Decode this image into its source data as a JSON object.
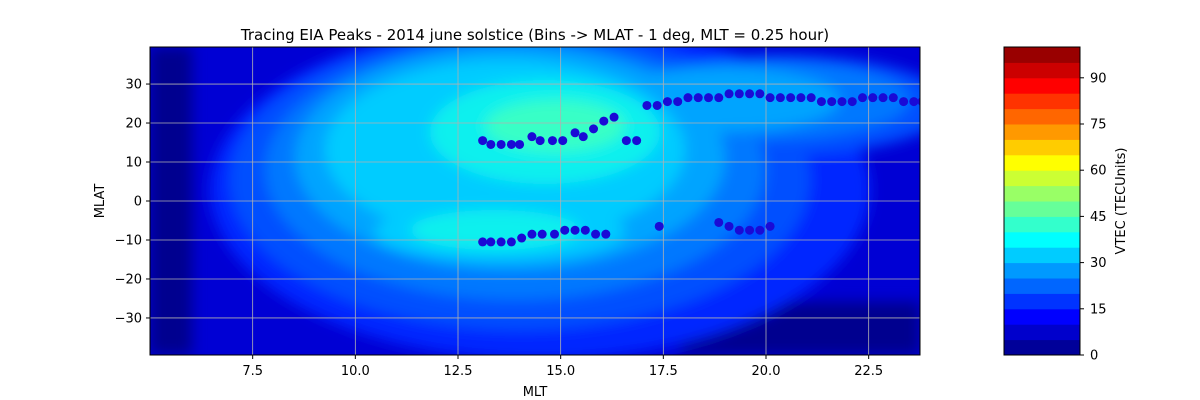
{
  "chart_data": {
    "type": "contour",
    "title": "Tracing EIA Peaks - 2014 june solstice (Bins -> MLAT - 1 deg, MLT = 0.25 hour)",
    "xlabel": "MLT",
    "ylabel": "MLAT",
    "xlim": [
      5.0,
      23.75
    ],
    "ylim": [
      -39.5,
      39.5
    ],
    "xticks": [
      7.5,
      10.0,
      12.5,
      15.0,
      17.5,
      20.0,
      22.5
    ],
    "xtick_labels": [
      "7.5",
      "10.0",
      "12.5",
      "15.0",
      "17.5",
      "20.0",
      "22.5"
    ],
    "yticks": [
      -30,
      -20,
      -10,
      0,
      10,
      20,
      30
    ],
    "ytick_labels": [
      "−30",
      "−20",
      "−10",
      "0",
      "10",
      "20",
      "30"
    ],
    "grid": true,
    "colormap": "jet",
    "colorbar": {
      "label": "VTEC (TECUnits)",
      "range": [
        0,
        100
      ],
      "levels": 20,
      "ticks": [
        0,
        15,
        30,
        45,
        60,
        75,
        90
      ],
      "tick_labels": [
        "0",
        "15",
        "30",
        "45",
        "60",
        "75",
        "90"
      ]
    },
    "peaks_north": {
      "mlt": [
        13.1,
        13.3,
        13.55,
        13.8,
        14.0,
        14.3,
        14.5,
        14.8,
        15.05,
        15.35,
        15.55,
        15.8,
        16.05,
        16.3,
        16.6,
        16.85,
        17.1,
        17.35,
        17.6,
        17.85,
        18.1,
        18.35,
        18.6,
        18.85,
        19.1,
        19.35,
        19.6,
        19.85,
        20.1,
        20.35,
        20.6,
        20.85,
        21.1,
        21.35,
        21.6,
        21.85,
        22.1,
        22.35,
        22.6,
        22.85,
        23.1,
        23.35,
        23.6,
        23.8
      ],
      "mlat": [
        15.5,
        14.5,
        14.5,
        14.5,
        14.5,
        16.5,
        15.5,
        15.5,
        15.5,
        17.5,
        16.5,
        18.5,
        20.5,
        21.5,
        15.5,
        15.5,
        24.5,
        24.5,
        25.5,
        25.5,
        26.5,
        26.5,
        26.5,
        26.5,
        27.5,
        27.5,
        27.5,
        27.5,
        26.5,
        26.5,
        26.5,
        26.5,
        26.5,
        25.5,
        25.5,
        25.5,
        25.5,
        26.5,
        26.5,
        26.5,
        26.5,
        25.5,
        25.5,
        25.5
      ]
    },
    "peaks_south": {
      "mlt": [
        13.1,
        13.3,
        13.55,
        13.8,
        14.05,
        14.3,
        14.55,
        14.85,
        15.1,
        15.35,
        15.6,
        15.85,
        16.1,
        17.4,
        18.85,
        19.1,
        19.35,
        19.6,
        19.85,
        20.1
      ],
      "mlat": [
        -10.5,
        -10.5,
        -10.5,
        -10.5,
        -9.5,
        -8.5,
        -8.5,
        -8.5,
        -7.5,
        -7.5,
        -7.5,
        -8.5,
        -8.5,
        -6.5,
        -5.5,
        -6.5,
        -7.5,
        -7.5,
        -7.5,
        -6.5
      ]
    },
    "marker_color": "#1a0ad6"
  }
}
